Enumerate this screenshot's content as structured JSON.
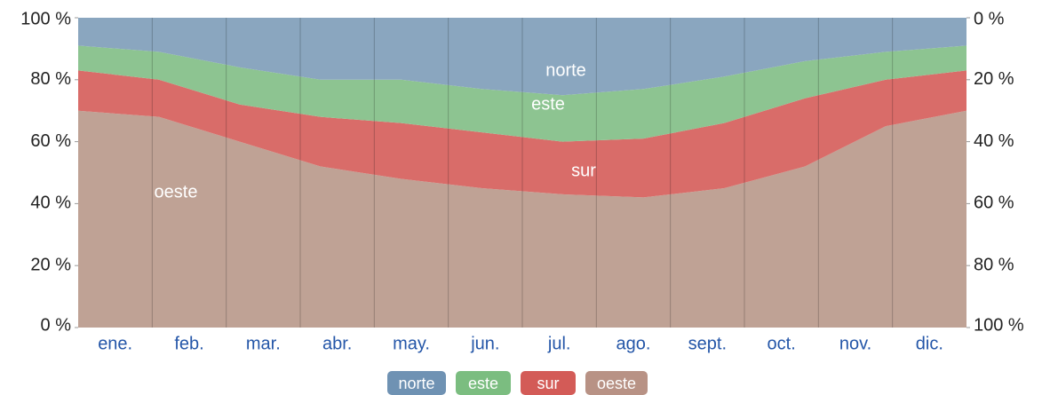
{
  "chart_data": {
    "type": "stacked_area",
    "categories": [
      "ene.",
      "feb.",
      "mar.",
      "abr.",
      "may.",
      "jun.",
      "jul.",
      "ago.",
      "sept.",
      "oct.",
      "nov.",
      "dic."
    ],
    "series": [
      {
        "name": "norte",
        "color": "#8aa6bf",
        "legend_color": "#6f92b3",
        "values": [
          9,
          11,
          16,
          20,
          20,
          23,
          25,
          23,
          19,
          14,
          11,
          9
        ]
      },
      {
        "name": "este",
        "color": "#8dc491",
        "legend_color": "#7bbd80",
        "values": [
          8,
          9,
          12,
          12,
          14,
          14,
          15,
          16,
          15,
          12,
          9,
          8
        ]
      },
      {
        "name": "sur",
        "color": "#d96c69",
        "legend_color": "#d35b57",
        "values": [
          13,
          12,
          12,
          16,
          18,
          18,
          17,
          19,
          21,
          22,
          15,
          13
        ]
      },
      {
        "name": "oeste",
        "color": "#bfa295",
        "legend_color": "#b89285",
        "values": [
          70,
          68,
          60,
          52,
          48,
          45,
          43,
          42,
          45,
          52,
          65,
          70
        ]
      }
    ],
    "annotations": [
      "norte",
      "este",
      "sur",
      "oeste"
    ],
    "ylim": [
      0,
      100
    ],
    "yticks": [
      {
        "value": 0,
        "label": "0 %"
      },
      {
        "value": 20,
        "label": "20 %"
      },
      {
        "value": 40,
        "label": "40 %"
      },
      {
        "value": 60,
        "label": "60 %"
      },
      {
        "value": 80,
        "label": "80 %"
      },
      {
        "value": 100,
        "label": "100 %"
      }
    ],
    "y2lim": [
      100,
      0
    ],
    "y2ticks": [
      {
        "value": 100,
        "label": "100 %"
      },
      {
        "value": 80,
        "label": "80 %"
      },
      {
        "value": 60,
        "label": "60 %"
      },
      {
        "value": 40,
        "label": "40 %"
      },
      {
        "value": 20,
        "label": "20 %"
      },
      {
        "value": 0,
        "label": "0 %"
      }
    ]
  }
}
